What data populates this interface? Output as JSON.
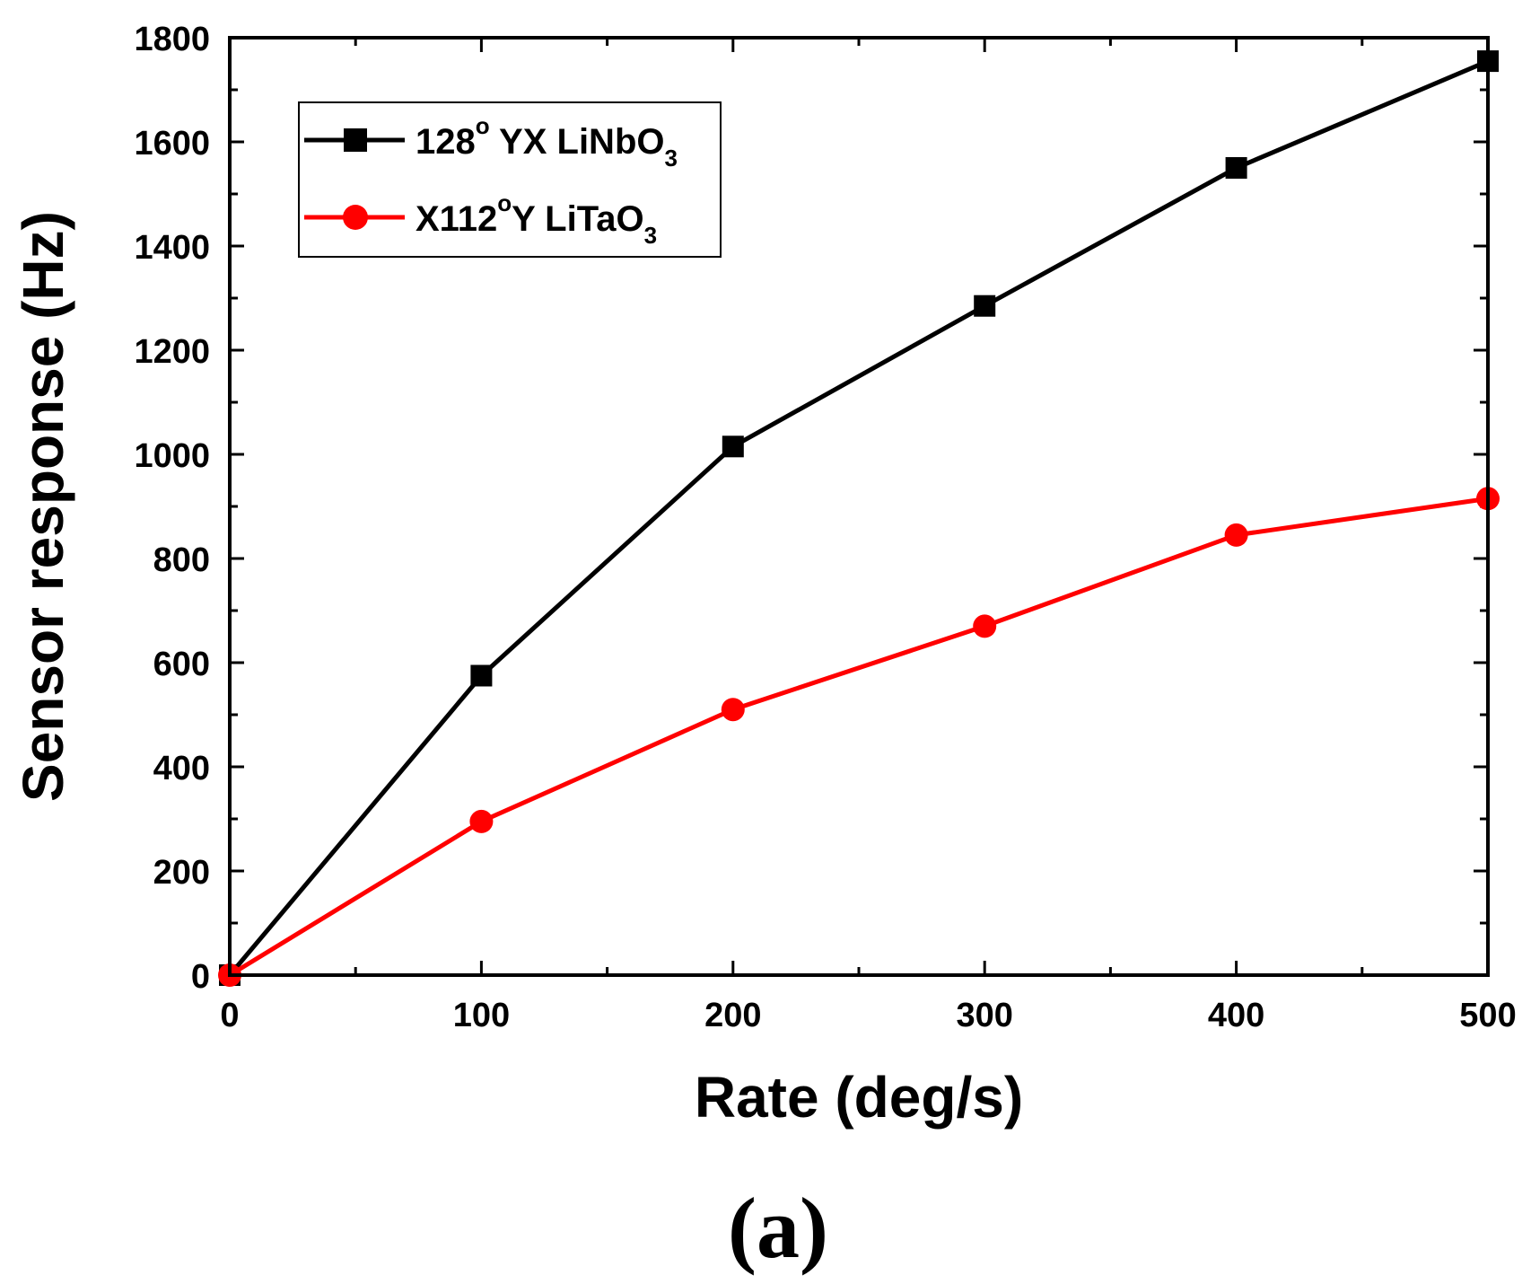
{
  "chart_data": {
    "type": "line",
    "title": "",
    "xlabel": "Rate (deg/s)",
    "ylabel": "Sensor response (Hz)",
    "xlim": [
      0,
      500
    ],
    "ylim": [
      0,
      1800
    ],
    "xticks": [
      0,
      100,
      200,
      300,
      400,
      500
    ],
    "yticks": [
      0,
      200,
      400,
      600,
      800,
      1000,
      1200,
      1400,
      1600,
      1800
    ],
    "x_minor_step": 50,
    "y_minor_step": 100,
    "x": [
      0,
      100,
      200,
      300,
      400,
      500
    ],
    "series": [
      {
        "name": "128° YX LiNbO3",
        "legend": {
          "pre": "128",
          "sup": "o",
          "mid": " YX LiNbO",
          "sub": "3"
        },
        "color": "#000000",
        "marker": "square",
        "values": [
          0,
          575,
          1015,
          1285,
          1550,
          1755
        ]
      },
      {
        "name": "X112°Y LiTaO3",
        "legend": {
          "pre": "X112",
          "sup": "o",
          "mid": "Y LiTaO",
          "sub": "3"
        },
        "color": "#ff0000",
        "marker": "circle",
        "values": [
          0,
          295,
          510,
          670,
          845,
          915
        ]
      }
    ],
    "legend_position": "top-left",
    "panel_label": "(a)"
  }
}
